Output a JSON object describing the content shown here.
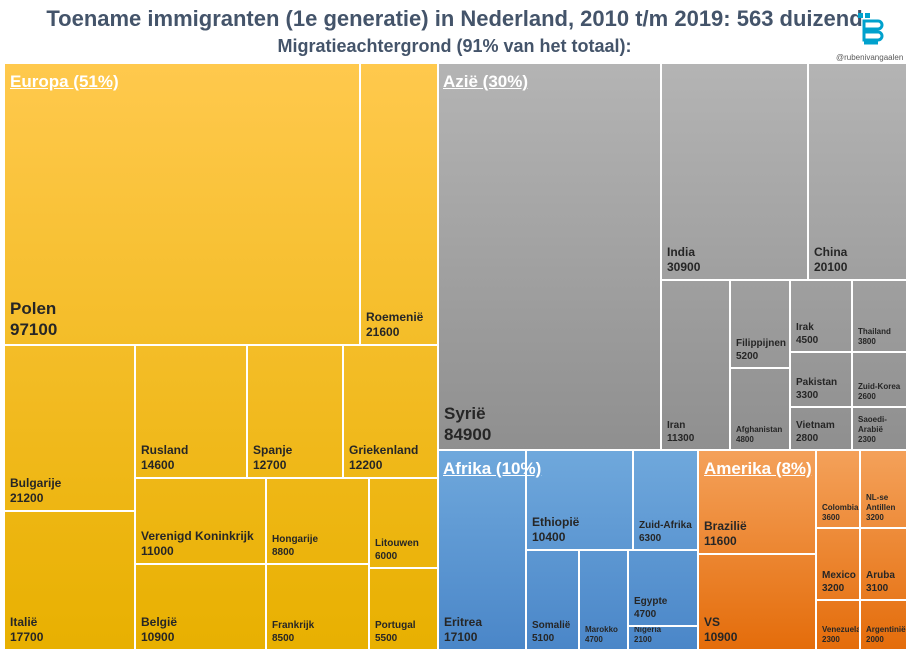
{
  "title": "Toename immigranten (1e generatie) in Nederland, 2010 t/m 2019: 563 duizend",
  "subtitle": "Migratieachtergrond  (91% van het totaal):",
  "credit": "@rubenivangaalen",
  "logo_text": "cbs",
  "chart_data": {
    "type": "treemap",
    "units": "personen",
    "groups": [
      {
        "name": "Europa",
        "label": "Europa  (51%)",
        "share_pct": 51,
        "color_top": "#ffc94d",
        "color_bottom": "#e8b000",
        "items": [
          {
            "name": "Polen",
            "value": 97100,
            "label": "Polen",
            "value_label": "97100"
          },
          {
            "name": "Roemenië",
            "value": 21600,
            "label": "Roemenië",
            "value_label": "21600"
          },
          {
            "name": "Bulgarije",
            "value": 21200,
            "label": "Bulgarije",
            "value_label": "21200"
          },
          {
            "name": "Italië",
            "value": 17700,
            "label": "Italië",
            "value_label": "17700"
          },
          {
            "name": "Rusland",
            "value": 14600,
            "label": "Rusland",
            "value_label": "14600"
          },
          {
            "name": "Spanje",
            "value": 12700,
            "label": "Spanje",
            "value_label": "12700"
          },
          {
            "name": "Griekenland",
            "value": 12200,
            "label": "Griekenland",
            "value_label": "12200"
          },
          {
            "name": "Verenigd Koninkrijk",
            "value": 11000,
            "label": "Verenigd Koninkrijk",
            "value_label": "11000"
          },
          {
            "name": "Hongarije",
            "value": 8800,
            "label": "Hongarije",
            "value_label": "8800"
          },
          {
            "name": "Litouwen",
            "value": 6000,
            "label": "Litouwen",
            "value_label": "6000"
          },
          {
            "name": "België",
            "value": 10900,
            "label": "België",
            "value_label": "10900"
          },
          {
            "name": "Frankrijk",
            "value": 8500,
            "label": "Frankrijk",
            "value_label": "8500"
          },
          {
            "name": "Portugal",
            "value": 5500,
            "label": "Portugal",
            "value_label": "5500"
          }
        ]
      },
      {
        "name": "Azië",
        "label": "Azië (30%)",
        "share_pct": 30,
        "color_top": "#b4b4b4",
        "color_bottom": "#8f8f8f",
        "items": [
          {
            "name": "Syrië",
            "value": 84900,
            "label": "Syrië",
            "value_label": "84900"
          },
          {
            "name": "India",
            "value": 30900,
            "label": "India",
            "value_label": "30900"
          },
          {
            "name": "China",
            "value": 20100,
            "label": "China",
            "value_label": "20100"
          },
          {
            "name": "Iran",
            "value": 11300,
            "label": "Iran",
            "value_label": "11300"
          },
          {
            "name": "Filippijnen",
            "value": 5200,
            "label": "Filippijnen",
            "value_label": "5200"
          },
          {
            "name": "Afghanistan",
            "value": 4800,
            "label": "Afghanistan",
            "value_label": "4800"
          },
          {
            "name": "Irak",
            "value": 4500,
            "label": "Irak",
            "value_label": "4500"
          },
          {
            "name": "Thailand",
            "value": 3800,
            "label": "Thailand",
            "value_label": "3800"
          },
          {
            "name": "Pakistan",
            "value": 3300,
            "label": "Pakistan",
            "value_label": "3300"
          },
          {
            "name": "Zuid-Korea",
            "value": 2600,
            "label": "Zuid-Korea",
            "value_label": "2600"
          },
          {
            "name": "Vietnam",
            "value": 2800,
            "label": "Vietnam",
            "value_label": "2800"
          },
          {
            "name": "Saoedi-Arabië",
            "value": 2300,
            "label": "Saoedi-Arabië",
            "value_label": "2300"
          }
        ]
      },
      {
        "name": "Afrika",
        "label": "Afrika (10%)",
        "share_pct": 10,
        "color_top": "#6fa8dc",
        "color_bottom": "#4a86c8",
        "items": [
          {
            "name": "Eritrea",
            "value": 17100,
            "label": "Eritrea",
            "value_label": "17100"
          },
          {
            "name": "Ethiopië",
            "value": 10400,
            "label": "Ethiopië",
            "value_label": "10400"
          },
          {
            "name": "Zuid-Afrika",
            "value": 6300,
            "label": "Zuid-Afrika",
            "value_label": "6300"
          },
          {
            "name": "Somalië",
            "value": 5100,
            "label": "Somalië",
            "value_label": "5100"
          },
          {
            "name": "Marokko",
            "value": 4700,
            "label": "Marokko",
            "value_label": "4700"
          },
          {
            "name": "Egypte",
            "value": 4700,
            "label": "Egypte",
            "value_label": "4700"
          },
          {
            "name": "Nigeria",
            "value": 2100,
            "label": "Nigeria",
            "value_label": "2100"
          }
        ]
      },
      {
        "name": "Amerika",
        "label": "Amerika (8%)",
        "share_pct": 8,
        "color_top": "#f4a15a",
        "color_bottom": "#e46c0a",
        "items": [
          {
            "name": "Brazilië",
            "value": 11600,
            "label": "Brazilië",
            "value_label": "11600"
          },
          {
            "name": "VS",
            "value": 10900,
            "label": "VS",
            "value_label": "10900"
          },
          {
            "name": "Colombia",
            "value": 3600,
            "label": "Colombia",
            "value_label": "3600"
          },
          {
            "name": "NL-se Antillen",
            "value": 3200,
            "label": "NL-se Antillen",
            "value_label": "3200"
          },
          {
            "name": "Mexico",
            "value": 3200,
            "label": "Mexico",
            "value_label": "3200"
          },
          {
            "name": "Aruba",
            "value": 3100,
            "label": "Aruba",
            "value_label": "3100"
          },
          {
            "name": "Venezuela",
            "value": 2300,
            "label": "Venezuela",
            "value_label": "2300"
          },
          {
            "name": "Argentinië",
            "value": 2000,
            "label": "Argentinië",
            "value_label": "2000"
          }
        ]
      }
    ]
  }
}
